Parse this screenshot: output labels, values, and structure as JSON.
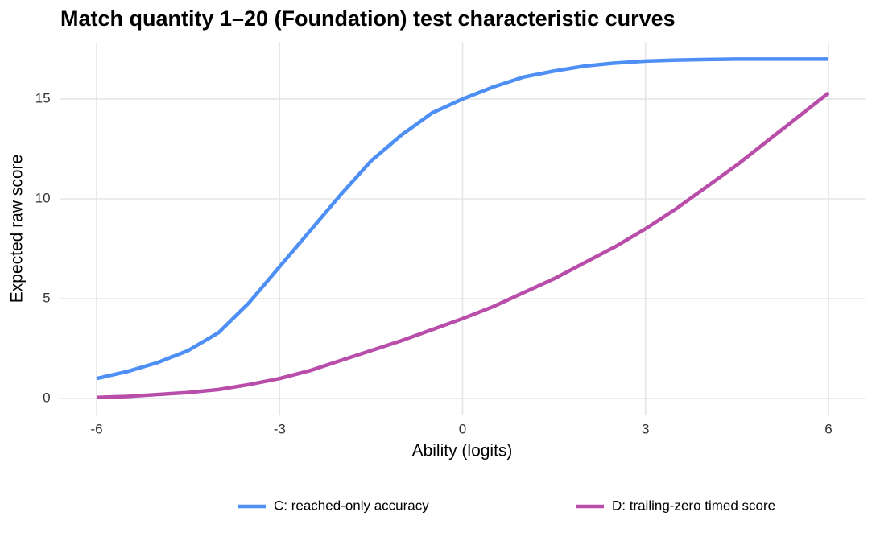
{
  "chart_data": {
    "type": "line",
    "title": "Match quantity 1–20 (Foundation) test characteristic curves",
    "x_label": "Ability (logits)",
    "y_label": "Expected raw score",
    "x": [
      -6,
      -5.5,
      -5,
      -4.5,
      -4,
      -3.5,
      -3,
      -2.5,
      -2,
      -1.5,
      -1,
      -0.5,
      0,
      0.5,
      1,
      1.5,
      2,
      2.5,
      3,
      3.5,
      4,
      4.5,
      5,
      5.5,
      6
    ],
    "series": [
      {
        "name": "C: reached-only accuracy",
        "color": "#4d8ff5",
        "values": [
          1.0,
          1.35,
          1.8,
          2.4,
          3.3,
          4.8,
          6.6,
          8.4,
          10.2,
          11.9,
          13.2,
          14.3,
          15.0,
          15.6,
          16.1,
          16.4,
          16.65,
          16.8,
          16.9,
          16.95,
          16.98,
          17.0,
          17.0,
          17.0,
          17.0
        ]
      },
      {
        "name": "D: trailing-zero timed score",
        "color": "#b84daa",
        "values": [
          0.05,
          0.1,
          0.2,
          0.3,
          0.45,
          0.7,
          1.0,
          1.4,
          1.9,
          2.4,
          2.9,
          3.45,
          4.0,
          4.6,
          5.3,
          6.0,
          6.8,
          7.6,
          8.5,
          9.5,
          10.6,
          11.7,
          12.9,
          14.1,
          15.3
        ]
      }
    ],
    "xlim": [
      -6.6,
      6.6
    ],
    "xticks": [
      -6,
      -3,
      0,
      3,
      6
    ],
    "ylim": [
      -0.85,
      17.85
    ],
    "yticks": [
      0,
      5,
      10,
      15
    ],
    "grid": true,
    "legend": "bottom"
  }
}
